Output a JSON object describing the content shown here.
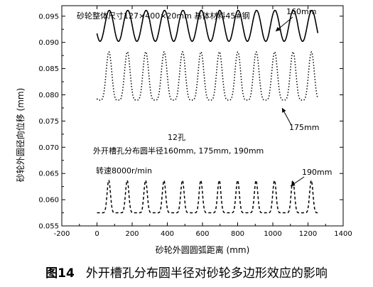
{
  "chart_data": {
    "type": "line",
    "xlabel": "砂轮外圆圆弧距离 (mm)",
    "ylabel": "砂轮外圆径向位移 (mm)",
    "xlim": [
      -200,
      1400
    ],
    "ylim": [
      0.055,
      0.097
    ],
    "xticks": [
      -200,
      0,
      200,
      400,
      600,
      800,
      1000,
      1200,
      1400
    ],
    "xtick_labels": [
      "-200",
      "0",
      "200",
      "400",
      "600",
      "800",
      "1000",
      "1200",
      "1400"
    ],
    "yticks": [
      0.055,
      0.06,
      0.065,
      0.07,
      0.075,
      0.08,
      0.085,
      0.09,
      0.095
    ],
    "ytick_labels": [
      "0.055",
      "0.060",
      "0.065",
      "0.070",
      "0.075",
      "0.080",
      "0.085",
      "0.090",
      "0.095"
    ],
    "grid": false,
    "series": [
      {
        "name": "160mm",
        "style": "solid",
        "color": "#000000",
        "x_start": 0,
        "x_end": 1256,
        "period": 104.7,
        "phase_peak_x": 70,
        "min": 0.0902,
        "max": 0.0961,
        "peak_shape": "sinusoid"
      },
      {
        "name": "175mm",
        "style": "dotted",
        "color": "#000000",
        "x_start": 0,
        "x_end": 1256,
        "period": 104.7,
        "phase_peak_x": 68,
        "min": 0.079,
        "max": 0.0882,
        "peak_shape": "sharp"
      },
      {
        "name": "190mm",
        "style": "dashed",
        "color": "#000000",
        "x_start": 0,
        "x_end": 1256,
        "period": 104.7,
        "phase_peak_x": 67,
        "min": 0.0575,
        "max": 0.0637,
        "peak_shape": "spike"
      }
    ],
    "annotations": [
      {
        "text": "砂轮整体尺寸127×400×20mm 基体材料45#钢"
      },
      {
        "text": "12孔"
      },
      {
        "text": "外开槽孔分布圆半径160mm, 175mm, 190mm"
      },
      {
        "text": "转速8000r/min"
      }
    ],
    "series_labels": [
      {
        "text": "160mm",
        "series": "160mm"
      },
      {
        "text": "175mm",
        "series": "175mm"
      },
      {
        "text": "190mm",
        "series": "190mm"
      }
    ]
  },
  "caption": {
    "figure_no": "图14",
    "text": "外开槽孔分布圆半径对砂轮多边形效应的影响"
  }
}
